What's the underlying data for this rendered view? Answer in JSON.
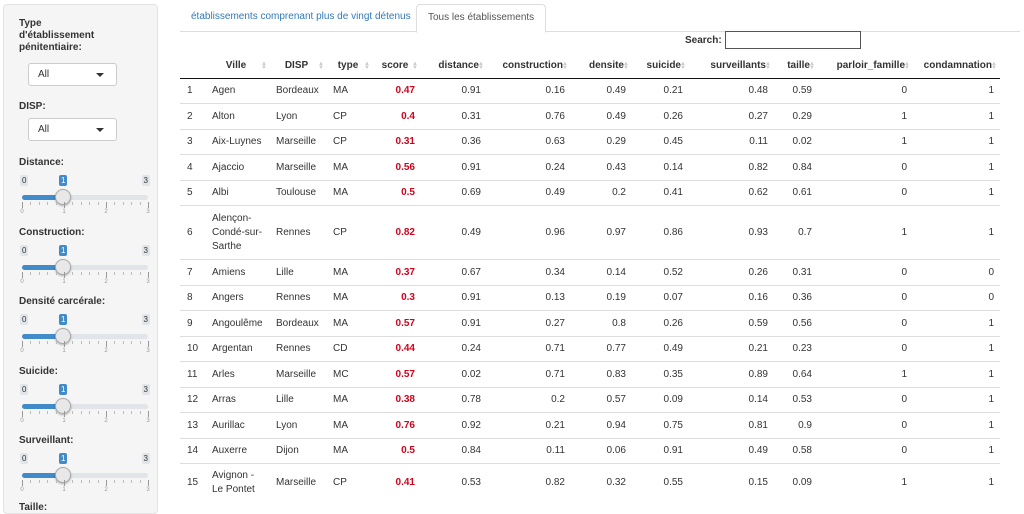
{
  "sidebar": {
    "type_label": "Type d'établissement pénitentiaire:",
    "type_value": "All",
    "disp_label": "DISP:",
    "disp_value": "All",
    "sliders": [
      {
        "label": "Distance:",
        "min": "0",
        "max": "3",
        "value": "1"
      },
      {
        "label": "Construction:",
        "min": "0",
        "max": "3",
        "value": "1"
      },
      {
        "label": "Densité carcérale:",
        "min": "0",
        "max": "3",
        "value": "1"
      },
      {
        "label": "Suicide:",
        "min": "0",
        "max": "3",
        "value": "1"
      },
      {
        "label": "Surveillant:",
        "min": "0",
        "max": "3",
        "value": "1"
      }
    ],
    "tick_labels": [
      "0",
      "1",
      "2",
      "3"
    ],
    "next_label": "Taille:"
  },
  "tabs": [
    {
      "label": "établissements comprenant plus de vingt détenus",
      "active": false
    },
    {
      "label": "Tous les établissements",
      "active": true
    }
  ],
  "search": {
    "label": "Search:",
    "value": ""
  },
  "table": {
    "columns": [
      "",
      "Ville",
      "DISP",
      "type",
      "score",
      "distance",
      "construction",
      "densite",
      "suicide",
      "surveillants",
      "taille",
      "parloir_famille",
      "condamnation"
    ],
    "rows": [
      [
        "1",
        "Agen",
        "Bordeaux",
        "MA",
        "0.47",
        "0.91",
        "0.16",
        "0.49",
        "0.21",
        "0.48",
        "0.59",
        "0",
        "1"
      ],
      [
        "2",
        "Alton",
        "Lyon",
        "CP",
        "0.4",
        "0.31",
        "0.76",
        "0.49",
        "0.26",
        "0.27",
        "0.29",
        "1",
        "1"
      ],
      [
        "3",
        "Aix-Luynes",
        "Marseille",
        "CP",
        "0.31",
        "0.36",
        "0.63",
        "0.29",
        "0.45",
        "0.11",
        "0.02",
        "1",
        "1"
      ],
      [
        "4",
        "Ajaccio",
        "Marseille",
        "MA",
        "0.56",
        "0.91",
        "0.24",
        "0.43",
        "0.14",
        "0.82",
        "0.84",
        "0",
        "1"
      ],
      [
        "5",
        "Albi",
        "Toulouse",
        "MA",
        "0.5",
        "0.69",
        "0.49",
        "0.2",
        "0.41",
        "0.62",
        "0.61",
        "0",
        "1"
      ],
      [
        "6",
        "Alençon-Condé-sur-Sarthe",
        "Rennes",
        "CP",
        "0.82",
        "0.49",
        "0.96",
        "0.97",
        "0.86",
        "0.93",
        "0.7",
        "1",
        "1"
      ],
      [
        "7",
        "Amiens",
        "Lille",
        "MA",
        "0.37",
        "0.67",
        "0.34",
        "0.14",
        "0.52",
        "0.26",
        "0.31",
        "0",
        "0"
      ],
      [
        "8",
        "Angers",
        "Rennes",
        "MA",
        "0.3",
        "0.91",
        "0.13",
        "0.19",
        "0.07",
        "0.16",
        "0.36",
        "0",
        "0"
      ],
      [
        "9",
        "Angoulême",
        "Bordeaux",
        "MA",
        "0.57",
        "0.91",
        "0.27",
        "0.8",
        "0.26",
        "0.59",
        "0.56",
        "0",
        "1"
      ],
      [
        "10",
        "Argentan",
        "Rennes",
        "CD",
        "0.44",
        "0.24",
        "0.71",
        "0.77",
        "0.49",
        "0.21",
        "0.23",
        "0",
        "1"
      ],
      [
        "11",
        "Arles",
        "Marseille",
        "MC",
        "0.57",
        "0.02",
        "0.71",
        "0.83",
        "0.35",
        "0.89",
        "0.64",
        "1",
        "1"
      ],
      [
        "12",
        "Arras",
        "Lille",
        "MA",
        "0.38",
        "0.78",
        "0.2",
        "0.57",
        "0.09",
        "0.14",
        "0.53",
        "0",
        "1"
      ],
      [
        "13",
        "Aurillac",
        "Lyon",
        "MA",
        "0.76",
        "0.92",
        "0.21",
        "0.94",
        "0.75",
        "0.81",
        "0.9",
        "0",
        "1"
      ],
      [
        "14",
        "Auxerre",
        "Dijon",
        "MA",
        "0.5",
        "0.84",
        "0.11",
        "0.06",
        "0.91",
        "0.49",
        "0.58",
        "0",
        "1"
      ],
      [
        "15",
        "Avignon - Le Pontet",
        "Marseille",
        "CP",
        "0.41",
        "0.53",
        "0.82",
        "0.32",
        "0.55",
        "0.15",
        "0.09",
        "1",
        "1"
      ]
    ]
  },
  "colors": {
    "accent": "#428bca",
    "score": "#d0021b",
    "link": "#337ab7"
  }
}
